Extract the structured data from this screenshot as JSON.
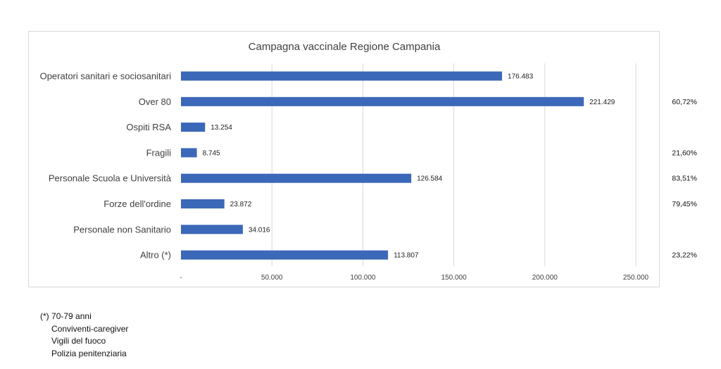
{
  "chart_data": {
    "type": "bar",
    "orientation": "horizontal",
    "title": "Campagna vaccinale Regione Campania",
    "categories": [
      "Operatori sanitari e sociosanitari",
      "Over 80",
      "Ospiti RSA",
      "Fragili",
      "Personale Scuola e Università",
      "Forze dell'ordine",
      "Personale non Sanitario",
      "Altro (*)"
    ],
    "values": [
      176483,
      221429,
      13254,
      8745,
      126584,
      23872,
      34016,
      113807
    ],
    "value_labels": [
      "176.483",
      "221.429",
      "13.254",
      "8.745",
      "126.584",
      "23.872",
      "34.016",
      "113.807"
    ],
    "xlim": [
      0,
      250000
    ],
    "xticks": [
      0,
      50000,
      100000,
      150000,
      200000,
      250000
    ],
    "xtick_labels": [
      "-",
      "50.000",
      "100.000",
      "150.000",
      "200.000",
      "250.000"
    ],
    "grid": true,
    "bar_color": "#3b68b8",
    "side_percentages": [
      "",
      "60,72%",
      "",
      "21,60%",
      "83,51%",
      "79,45%",
      "",
      "23,22%"
    ]
  },
  "footnote": {
    "marker": "(*)",
    "lines": [
      "70-79 anni",
      "Conviventi-caregiver",
      "Vigili del fuoco",
      "Polizia penitenziaria"
    ]
  }
}
